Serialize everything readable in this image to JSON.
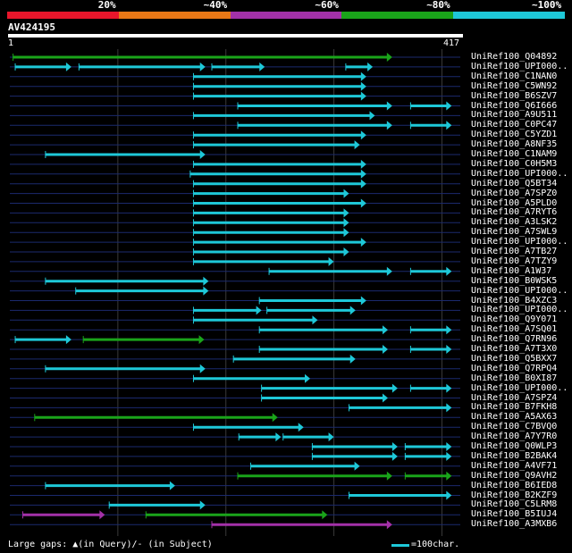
{
  "legend": {
    "labels": [
      "20%",
      "~40%",
      "~60%",
      "~80%",
      "~100%"
    ],
    "colors": [
      "#e8162b",
      "#e97816",
      "#a331a8",
      "#1aa41a",
      "#1ec8d8"
    ]
  },
  "query": {
    "name": "AV424195",
    "start_label": "1",
    "end_label": "417",
    "length": 417
  },
  "colors": {
    "grid": "#3a3a3a",
    "row_line": "#1b2a6e",
    "gap_line": "#888888"
  },
  "hits": [
    {
      "name": "UniRef100_Q04892",
      "segs": [
        [
          3,
          354,
          "#1aa41a"
        ]
      ]
    },
    {
      "name": "UniRef100_UPI000..",
      "segs": [
        [
          5,
          57,
          "#1ec8d8"
        ],
        [
          64,
          181,
          "#1ec8d8"
        ],
        [
          187,
          236,
          "#1ec8d8"
        ],
        [
          311,
          336,
          "#1ec8d8"
        ]
      ]
    },
    {
      "name": "UniRef100_C1NAN0",
      "segs": [
        [
          170,
          330,
          "#1ec8d8"
        ]
      ]
    },
    {
      "name": "UniRef100_C5WN92",
      "segs": [
        [
          170,
          330,
          "#1ec8d8"
        ]
      ]
    },
    {
      "name": "UniRef100_B6SZV7",
      "segs": [
        [
          170,
          330,
          "#1ec8d8"
        ]
      ]
    },
    {
      "name": "UniRef100_Q6I666",
      "segs": [
        [
          211,
          354,
          "#1ec8d8"
        ],
        [
          371,
          409,
          "#1ec8d8"
        ]
      ]
    },
    {
      "name": "UniRef100_A9U511",
      "segs": [
        [
          170,
          338,
          "#1ec8d8"
        ]
      ]
    },
    {
      "name": "UniRef100_C0PC47",
      "segs": [
        [
          211,
          354,
          "#1ec8d8"
        ],
        [
          371,
          409,
          "#1ec8d8"
        ]
      ]
    },
    {
      "name": "UniRef100_C5YZD1",
      "segs": [
        [
          170,
          330,
          "#1ec8d8"
        ]
      ]
    },
    {
      "name": "UniRef100_A8NF35",
      "segs": [
        [
          170,
          324,
          "#1ec8d8"
        ]
      ]
    },
    {
      "name": "UniRef100_C1NAM9",
      "segs": [
        [
          33,
          181,
          "#1ec8d8"
        ]
      ]
    },
    {
      "name": "UniRef100_C0H5M3",
      "segs": [
        [
          170,
          330,
          "#1ec8d8"
        ]
      ]
    },
    {
      "name": "UniRef100_UPI000..",
      "segs": [
        [
          167,
          330,
          "#1ec8d8"
        ]
      ]
    },
    {
      "name": "UniRef100_Q5BT34",
      "segs": [
        [
          170,
          330,
          "#1ec8d8"
        ]
      ]
    },
    {
      "name": "UniRef100_A7SPZ0",
      "segs": [
        [
          170,
          314,
          "#1ec8d8"
        ]
      ]
    },
    {
      "name": "UniRef100_A5PLD0",
      "segs": [
        [
          170,
          330,
          "#1ec8d8"
        ]
      ]
    },
    {
      "name": "UniRef100_A7RYT6",
      "segs": [
        [
          170,
          314,
          "#1ec8d8"
        ]
      ]
    },
    {
      "name": "UniRef100_A3LSK2",
      "segs": [
        [
          170,
          314,
          "#1ec8d8"
        ]
      ]
    },
    {
      "name": "UniRef100_A7SWL9",
      "segs": [
        [
          170,
          314,
          "#1ec8d8"
        ]
      ]
    },
    {
      "name": "UniRef100_UPI000..",
      "segs": [
        [
          170,
          330,
          "#1ec8d8"
        ]
      ]
    },
    {
      "name": "UniRef100_A7TB27",
      "segs": [
        [
          170,
          314,
          "#1ec8d8"
        ]
      ]
    },
    {
      "name": "UniRef100_A7TZY9",
      "segs": [
        [
          170,
          300,
          "#1ec8d8"
        ]
      ]
    },
    {
      "name": "UniRef100_A1W37",
      "segs": [
        [
          240,
          354,
          "#1ec8d8"
        ],
        [
          371,
          409,
          "#1ec8d8"
        ]
      ]
    },
    {
      "name": "UniRef100_B0WSK5",
      "segs": [
        [
          33,
          184,
          "#1ec8d8"
        ]
      ]
    },
    {
      "name": "UniRef100_UPI000..",
      "segs": [
        [
          61,
          184,
          "#1ec8d8"
        ]
      ]
    },
    {
      "name": "UniRef100_B4XZC3",
      "segs": [
        [
          231,
          330,
          "#1ec8d8"
        ]
      ]
    },
    {
      "name": "UniRef100_UPI000..",
      "segs": [
        [
          170,
          233,
          "#1ec8d8"
        ],
        [
          238,
          320,
          "#1ec8d8"
        ]
      ]
    },
    {
      "name": "UniRef100_Q9Y071",
      "segs": [
        [
          170,
          285,
          "#1ec8d8"
        ]
      ]
    },
    {
      "name": "UniRef100_A7SQ01",
      "segs": [
        [
          231,
          350,
          "#1ec8d8"
        ],
        [
          371,
          409,
          "#1ec8d8"
        ]
      ]
    },
    {
      "name": "UniRef100_Q7RN96",
      "segs": [
        [
          5,
          57,
          "#1ec8d8"
        ],
        [
          68,
          180,
          "#1aa41a"
        ]
      ]
    },
    {
      "name": "UniRef100_A7T3X0",
      "segs": [
        [
          231,
          350,
          "#1ec8d8"
        ],
        [
          371,
          409,
          "#1ec8d8"
        ]
      ]
    },
    {
      "name": "UniRef100_Q5BXX7",
      "segs": [
        [
          207,
          320,
          "#1ec8d8"
        ]
      ]
    },
    {
      "name": "UniRef100_Q7RPQ4",
      "segs": [
        [
          33,
          181,
          "#1ec8d8"
        ]
      ]
    },
    {
      "name": "UniRef100_B0XI87",
      "segs": [
        [
          170,
          278,
          "#1ec8d8"
        ]
      ]
    },
    {
      "name": "UniRef100_UPI000..",
      "segs": [
        [
          233,
          359,
          "#1ec8d8"
        ],
        [
          371,
          409,
          "#1ec8d8"
        ]
      ]
    },
    {
      "name": "UniRef100_A7SPZ4",
      "segs": [
        [
          233,
          350,
          "#1ec8d8"
        ]
      ]
    },
    {
      "name": "UniRef100_B7FKH8",
      "segs": [
        [
          314,
          409,
          "#1ec8d8"
        ]
      ]
    },
    {
      "name": "UniRef100_A5AX63",
      "segs": [
        [
          23,
          248,
          "#1aa41a"
        ]
      ]
    },
    {
      "name": "UniRef100_C7BVQ0",
      "segs": [
        [
          170,
          272,
          "#1ec8d8"
        ]
      ]
    },
    {
      "name": "UniRef100_A7Y7R0",
      "segs": [
        [
          212,
          251,
          "#1ec8d8"
        ],
        [
          253,
          300,
          "#1ec8d8"
        ]
      ]
    },
    {
      "name": "UniRef100_Q0WLP3",
      "segs": [
        [
          280,
          359,
          "#1ec8d8"
        ],
        [
          366,
          409,
          "#1ec8d8"
        ]
      ]
    },
    {
      "name": "UniRef100_B2BAK4",
      "segs": [
        [
          280,
          359,
          "#1ec8d8"
        ],
        [
          366,
          409,
          "#1ec8d8"
        ]
      ]
    },
    {
      "name": "UniRef100_A4VF71",
      "segs": [
        [
          223,
          324,
          "#1ec8d8"
        ]
      ]
    },
    {
      "name": "UniRef100_Q9AVH2",
      "segs": [
        [
          211,
          354,
          "#1aa41a"
        ],
        [
          366,
          409,
          "#1aa41a"
        ]
      ]
    },
    {
      "name": "UniRef100_B6IED8",
      "segs": [
        [
          33,
          153,
          "#1ec8d8"
        ]
      ]
    },
    {
      "name": "UniRef100_B2KZF9",
      "segs": [
        [
          314,
          409,
          "#1ec8d8"
        ]
      ]
    },
    {
      "name": "UniRef100_C5LRM8",
      "segs": [
        [
          92,
          181,
          "#1ec8d8"
        ]
      ]
    },
    {
      "name": "UniRef100_B5IUJ4",
      "segs": [
        [
          12,
          88,
          "#a331a8"
        ],
        [
          126,
          294,
          "#1aa41a"
        ]
      ]
    },
    {
      "name": "UniRef100_A3MXB6",
      "segs": [
        [
          187,
          354,
          "#a331a8"
        ]
      ]
    }
  ],
  "footer": {
    "gaps_text": "Large gaps: ▲(in Query)/- (in Subject)",
    "scale_text": "=100char."
  }
}
